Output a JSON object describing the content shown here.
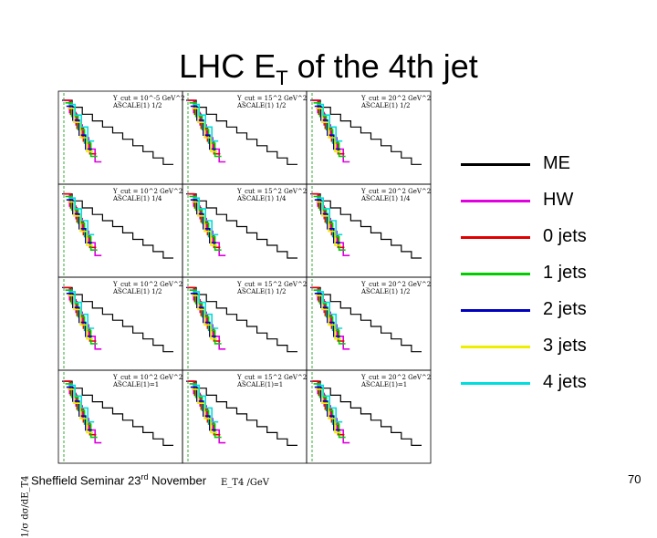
{
  "title": {
    "main": "LHC E",
    "sub": "T",
    "rest": " of the 4th jet"
  },
  "footer": {
    "text": "Sheffield Seminar 23",
    "sup": "rd",
    "tail": " November"
  },
  "page_number": "70",
  "colors": {
    "ME": "#000000",
    "HW": "#e000e0",
    "0 jets": "#e00000",
    "1 jets": "#00cc00",
    "2 jets": "#0000c0",
    "3 jets": "#eeee00",
    "4 jets": "#00dddd"
  },
  "legend": [
    {
      "label": "ME",
      "color": "#000000"
    },
    {
      "label": "HW",
      "color": "#e000e0"
    },
    {
      "label": "0 jets",
      "color": "#e00000"
    },
    {
      "label": "1 jets",
      "color": "#00cc00"
    },
    {
      "label": "2 jets",
      "color": "#0000c0"
    },
    {
      "label": "3 jets",
      "color": "#eeee00"
    },
    {
      "label": "4 jets",
      "color": "#00dddd"
    }
  ],
  "chart_data": {
    "type": "line",
    "title": "LHC ET of the 4th jet",
    "xlabel": "E_T4 /GeV",
    "ylabel": "1/σ dσ/dE_T4",
    "grid": false,
    "legend_position": "right",
    "panels": [
      {
        "ycut": "Y_cut = 10^-5 GeV^2",
        "scale": "ASCALE(1) 1/2"
      },
      {
        "ycut": "Y_cut = 15^2 GeV^2",
        "scale": "ASCALE(1) 1/2"
      },
      {
        "ycut": "Y_cut = 20^2 GeV^2",
        "scale": "ASCALE(1) 1/2"
      },
      {
        "ycut": "Y_cut = 10^2 GeV^2",
        "scale": "ASCALE(1) 1/4"
      },
      {
        "ycut": "Y_cut = 15^2 GeV^2",
        "scale": "ASCALE(1) 1/4"
      },
      {
        "ycut": "Y_cut = 20^2 GeV^2",
        "scale": "ASCALE(1) 1/4"
      },
      {
        "ycut": "Y_cut = 10^2 GeV^2",
        "scale": "ASCALE(1) 1/2"
      },
      {
        "ycut": "Y_cut = 15^2 GeV^2",
        "scale": "ASCALE(1) 1/2"
      },
      {
        "ycut": "Y_cut = 20^2 GeV^2",
        "scale": "ASCALE(1) 1/2"
      },
      {
        "ycut": "Y_cut = 10^2 GeV^2",
        "scale": "ASCALE(1)=1"
      },
      {
        "ycut": "Y_cut = 15^2 GeV^2",
        "scale": "ASCALE(1)=1"
      },
      {
        "ycut": "Y_cut = 20^2 GeV^2",
        "scale": "ASCALE(1)=1"
      }
    ],
    "series": [
      {
        "name": "ME",
        "values": [
          1.0,
          0.55,
          0.3,
          0.17,
          0.1,
          0.06,
          0.035,
          0.02,
          0.012,
          0.007,
          0.004
        ]
      },
      {
        "name": "HW",
        "values": [
          1.0,
          0.35,
          0.12,
          0.04,
          0.015,
          0.005
        ]
      },
      {
        "name": "0 jets",
        "values": [
          1.0,
          0.3,
          0.09,
          0.03,
          0.01
        ]
      },
      {
        "name": "1 jets",
        "values": [
          0.8,
          0.25,
          0.08,
          0.025,
          0.008
        ]
      },
      {
        "name": "2 jets",
        "values": [
          0.6,
          0.18,
          0.05,
          0.015
        ]
      },
      {
        "name": "3 jets",
        "values": [
          0.5,
          0.15,
          0.04,
          0.012
        ]
      },
      {
        "name": "4 jets",
        "values": [
          0.7,
          0.28,
          0.1,
          0.03
        ]
      }
    ]
  }
}
